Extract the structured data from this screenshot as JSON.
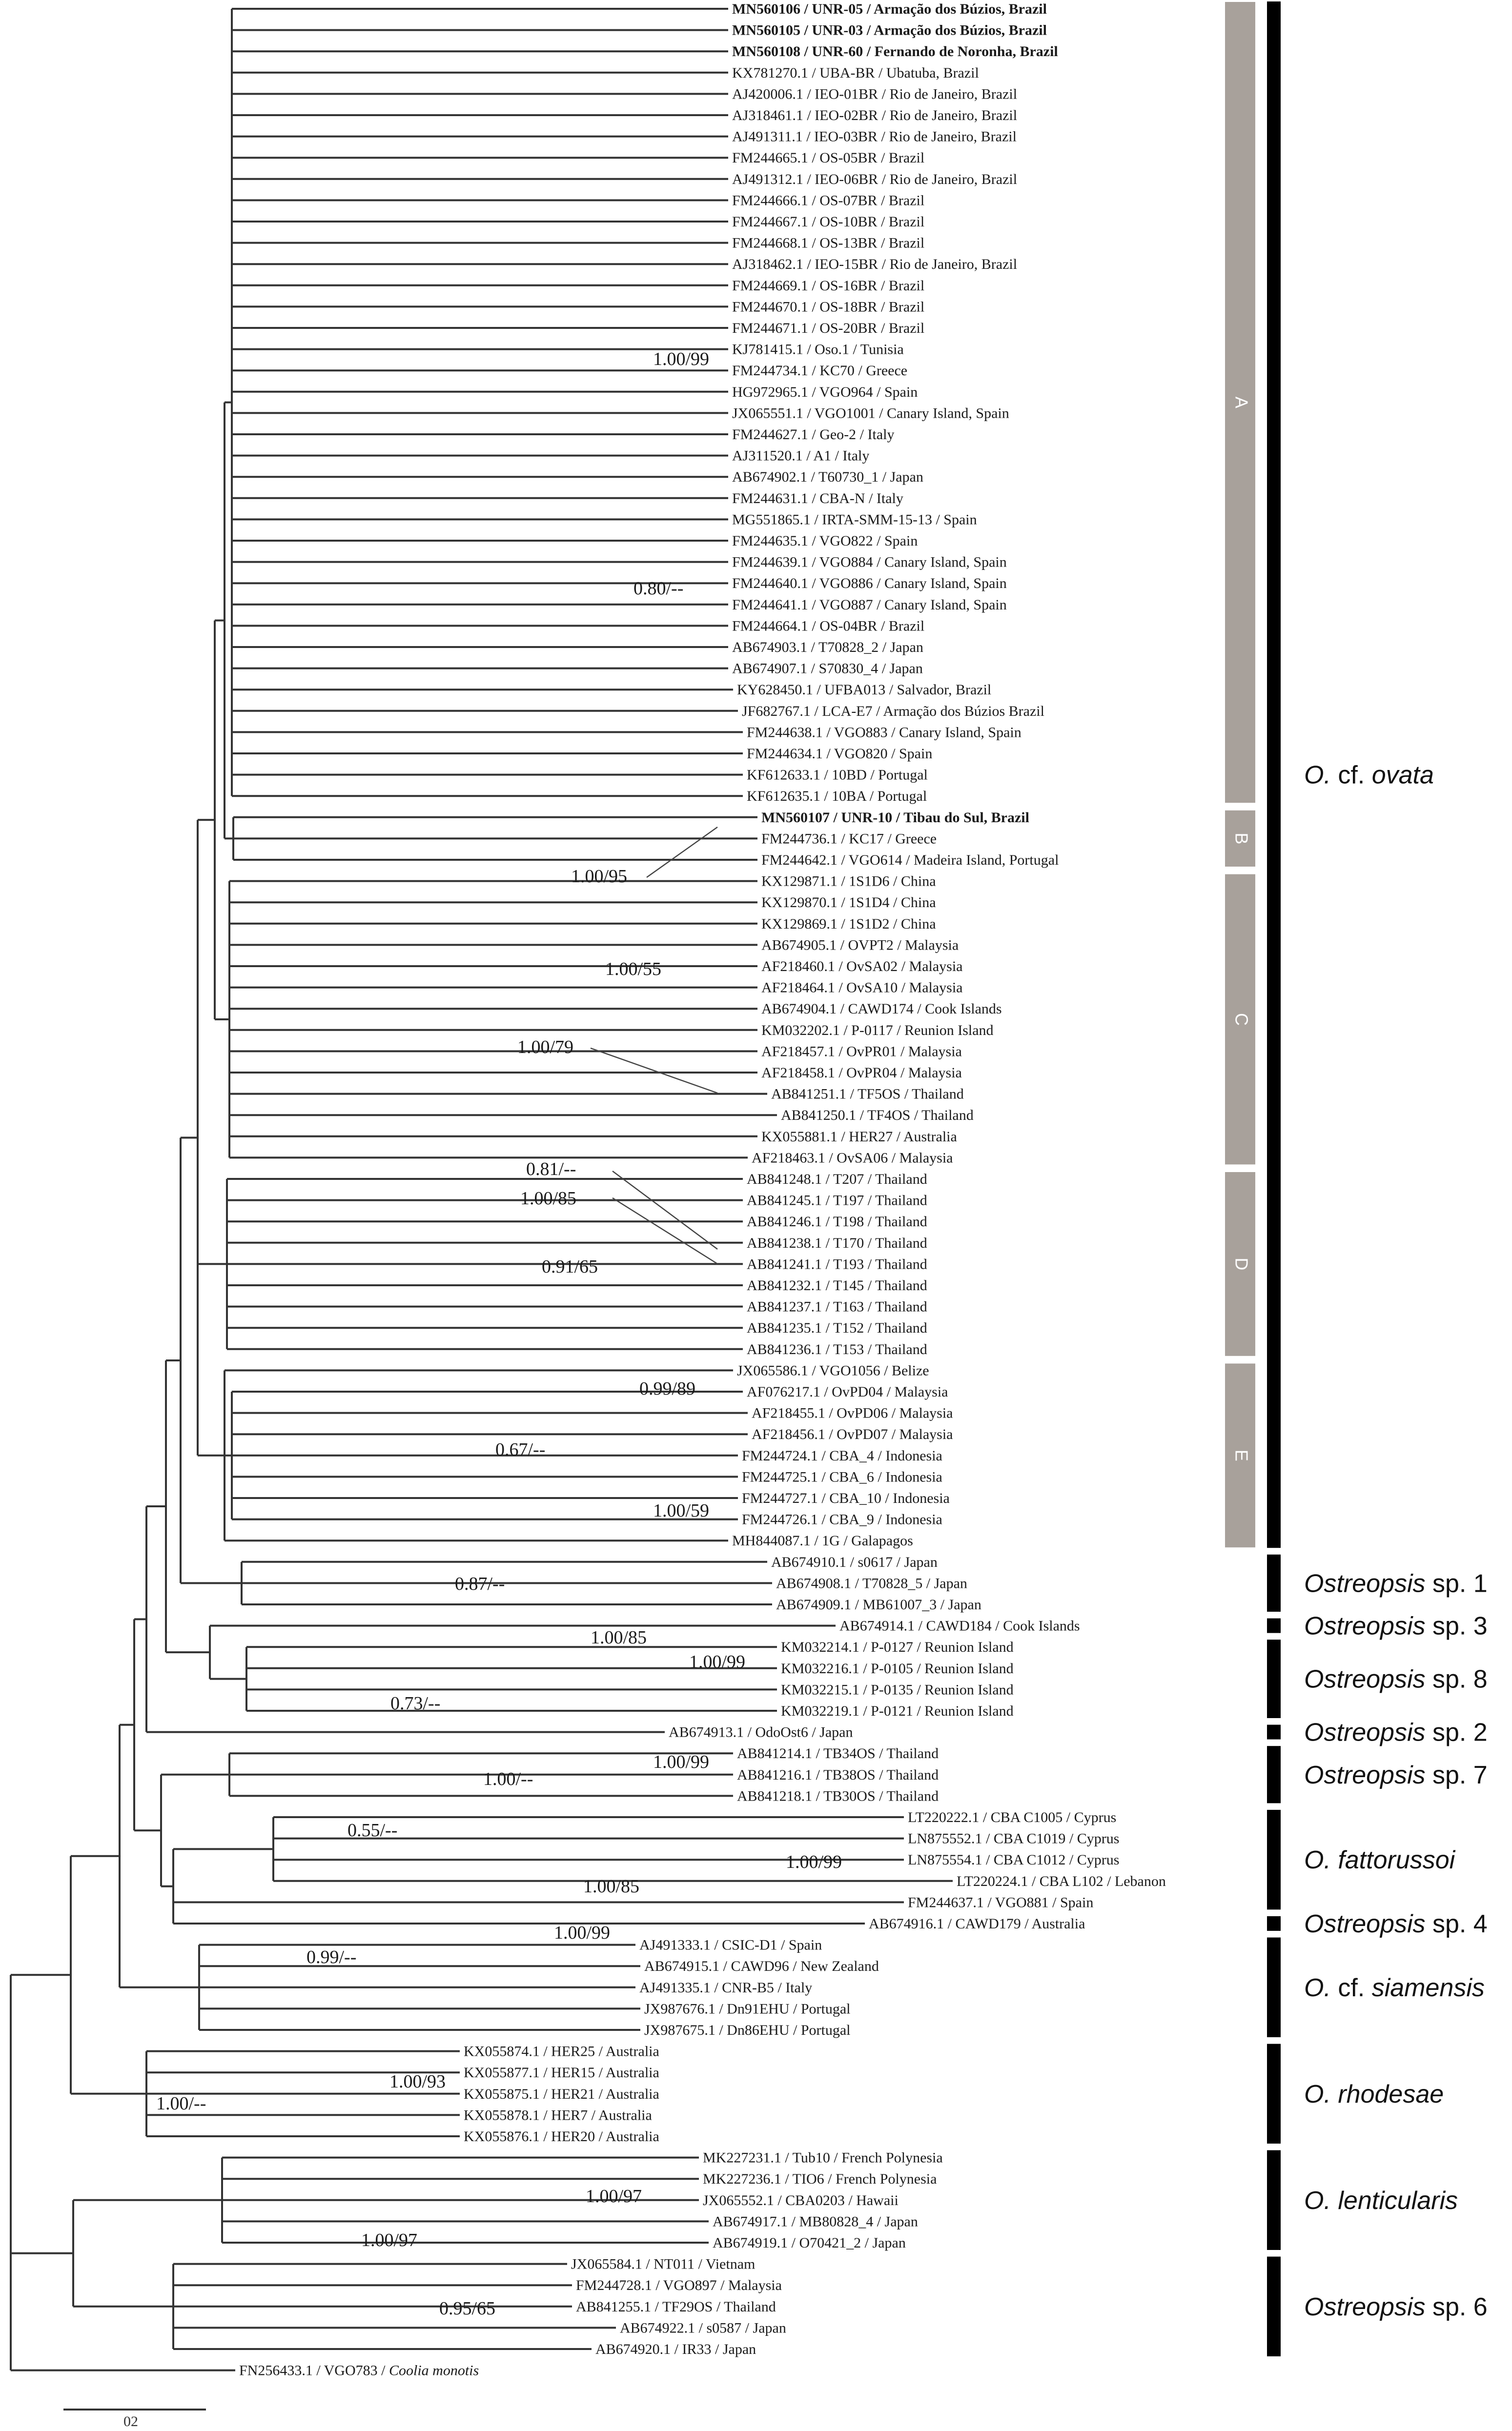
{
  "figure": {
    "type": "phylogenetic-tree",
    "scale_bar": {
      "label": "02"
    }
  },
  "leaves": [
    {
      "name": "MN560106 / UNR-05 / Armação dos Búzios, Brazil",
      "bold": true
    },
    {
      "name": "MN560105 / UNR-03 / Armação dos Búzios, Brazil",
      "bold": true
    },
    {
      "name": "MN560108 / UNR-60 / Fernando de Noronha, Brazil",
      "bold": true
    },
    {
      "name": "KX781270.1 / UBA-BR / Ubatuba, Brazil"
    },
    {
      "name": "AJ420006.1 / IEO-01BR / Rio de Janeiro, Brazil"
    },
    {
      "name": "AJ318461.1 / IEO-02BR / Rio de Janeiro, Brazil"
    },
    {
      "name": "AJ491311.1 / IEO-03BR / Rio de Janeiro, Brazil"
    },
    {
      "name": "FM244665.1 / OS-05BR / Brazil"
    },
    {
      "name": "AJ491312.1 / IEO-06BR / Rio de Janeiro, Brazil"
    },
    {
      "name": "FM244666.1 / OS-07BR / Brazil"
    },
    {
      "name": "FM244667.1 / OS-10BR / Brazil"
    },
    {
      "name": "FM244668.1 / OS-13BR / Brazil"
    },
    {
      "name": "AJ318462.1 / IEO-15BR / Rio de Janeiro, Brazil"
    },
    {
      "name": "FM244669.1 / OS-16BR / Brazil"
    },
    {
      "name": "FM244670.1 / OS-18BR / Brazil"
    },
    {
      "name": "FM244671.1 / OS-20BR / Brazil"
    },
    {
      "name": "KJ781415.1 / Oso.1 / Tunisia"
    },
    {
      "name": "FM244734.1 / KC70 / Greece"
    },
    {
      "name": "HG972965.1 / VGO964 / Spain"
    },
    {
      "name": "JX065551.1 / VGO1001 / Canary Island, Spain"
    },
    {
      "name": "FM244627.1 / Geo-2 / Italy"
    },
    {
      "name": "AJ311520.1 / A1 / Italy"
    },
    {
      "name": "AB674902.1 / T60730_1 / Japan"
    },
    {
      "name": "FM244631.1 / CBA-N / Italy"
    },
    {
      "name": "MG551865.1 / IRTA-SMM-15-13 / Spain"
    },
    {
      "name": "FM244635.1 / VGO822 / Spain"
    },
    {
      "name": "FM244639.1 / VGO884 / Canary Island, Spain"
    },
    {
      "name": "FM244640.1 / VGO886 / Canary Island, Spain"
    },
    {
      "name": "FM244641.1 / VGO887 / Canary Island, Spain"
    },
    {
      "name": "FM244664.1 / OS-04BR / Brazil"
    },
    {
      "name": "AB674903.1 / T70828_2 / Japan"
    },
    {
      "name": "AB674907.1 / S70830_4 / Japan"
    },
    {
      "name": "KY628450.1 / UFBA013 / Salvador, Brazil"
    },
    {
      "name": "JF682767.1 / LCA-E7 / Armação dos Búzios Brazil"
    },
    {
      "name": "FM244638.1 / VGO883 / Canary Island, Spain"
    },
    {
      "name": "FM244634.1 / VGO820 / Spain"
    },
    {
      "name": "KF612633.1 / 10BD / Portugal"
    },
    {
      "name": "KF612635.1 / 10BA / Portugal"
    },
    {
      "name": "MN560107 / UNR-10 / Tibau do Sul, Brazil",
      "bold": true
    },
    {
      "name": "FM244736.1 / KC17 / Greece"
    },
    {
      "name": "FM244642.1 / VGO614 / Madeira Island, Portugal"
    },
    {
      "name": "KX129871.1 / 1S1D6 / China"
    },
    {
      "name": "KX129870.1 / 1S1D4 / China"
    },
    {
      "name": "KX129869.1 / 1S1D2 / China"
    },
    {
      "name": "AB674905.1 / OVPT2 / Malaysia"
    },
    {
      "name": "AF218460.1 / OvSA02 / Malaysia"
    },
    {
      "name": "AF218464.1 / OvSA10 / Malaysia"
    },
    {
      "name": "AB674904.1 / CAWD174 / Cook Islands"
    },
    {
      "name": "KM032202.1 / P-0117 / Reunion Island"
    },
    {
      "name": "AF218457.1 / OvPR01 / Malaysia"
    },
    {
      "name": "AF218458.1 / OvPR04 / Malaysia"
    },
    {
      "name": "AB841251.1 / TF5OS / Thailand"
    },
    {
      "name": "AB841250.1 / TF4OS / Thailand"
    },
    {
      "name": "KX055881.1 / HER27 / Australia"
    },
    {
      "name": "AF218463.1 / OvSA06 / Malaysia"
    },
    {
      "name": "AB841248.1 / T207 / Thailand"
    },
    {
      "name": "AB841245.1 / T197 / Thailand"
    },
    {
      "name": "AB841246.1 / T198 / Thailand"
    },
    {
      "name": "AB841238.1 / T170 / Thailand"
    },
    {
      "name": "AB841241.1 / T193 / Thailand"
    },
    {
      "name": "AB841232.1 / T145 / Thailand"
    },
    {
      "name": "AB841237.1 / T163 / Thailand"
    },
    {
      "name": "AB841235.1 / T152 / Thailand"
    },
    {
      "name": "AB841236.1 / T153 / Thailand"
    },
    {
      "name": "JX065586.1 / VGO1056 / Belize"
    },
    {
      "name": "AF076217.1 / OvPD04 / Malaysia"
    },
    {
      "name": "AF218455.1 / OvPD06 / Malaysia"
    },
    {
      "name": "AF218456.1 / OvPD07 / Malaysia"
    },
    {
      "name": "FM244724.1 / CBA_4 / Indonesia"
    },
    {
      "name": "FM244725.1 / CBA_6 / Indonesia"
    },
    {
      "name": "FM244727.1 / CBA_10 / Indonesia"
    },
    {
      "name": "FM244726.1 / CBA_9 / Indonesia"
    },
    {
      "name": "MH844087.1 / 1G / Galapagos"
    },
    {
      "name": "AB674910.1 / s0617 / Japan"
    },
    {
      "name": "AB674908.1 / T70828_5 / Japan"
    },
    {
      "name": "AB674909.1 / MB61007_3 / Japan"
    },
    {
      "name": "AB674914.1 / CAWD184 / Cook Islands"
    },
    {
      "name": "KM032214.1 / P-0127 / Reunion Island"
    },
    {
      "name": "KM032216.1 / P-0105 / Reunion Island"
    },
    {
      "name": "KM032215.1 / P-0135 / Reunion Island"
    },
    {
      "name": "KM032219.1 / P-0121 / Reunion Island"
    },
    {
      "name": "AB674913.1 / OdoOst6 / Japan"
    },
    {
      "name": "AB841214.1 / TB34OS / Thailand"
    },
    {
      "name": "AB841216.1 / TB38OS / Thailand"
    },
    {
      "name": "AB841218.1 / TB30OS / Thailand"
    },
    {
      "name": "LT220222.1 / CBA C1005 / Cyprus"
    },
    {
      "name": "LN875552.1 / CBA C1019 / Cyprus"
    },
    {
      "name": "LN875554.1 / CBA C1012 / Cyprus"
    },
    {
      "name": "LT220224.1 / CBA L102 / Lebanon"
    },
    {
      "name": "FM244637.1 / VGO881 / Spain"
    },
    {
      "name": "AB674916.1 / CAWD179 / Australia"
    },
    {
      "name": "AJ491333.1 / CSIC-D1 / Spain"
    },
    {
      "name": "AB674915.1 / CAWD96 / New Zealand"
    },
    {
      "name": "AJ491335.1 / CNR-B5 / Italy"
    },
    {
      "name": "JX987676.1 / Dn91EHU / Portugal"
    },
    {
      "name": "JX987675.1 / Dn86EHU / Portugal"
    },
    {
      "name": "KX055874.1 / HER25 / Australia"
    },
    {
      "name": "KX055877.1 / HER15 / Australia"
    },
    {
      "name": "KX055875.1 / HER21 / Australia"
    },
    {
      "name": "KX055878.1 / HER7 / Australia"
    },
    {
      "name": "KX055876.1 / HER20 / Australia"
    },
    {
      "name": "MK227231.1 / Tub10 / French Polynesia"
    },
    {
      "name": "MK227236.1 / TIO6 / French Polynesia"
    },
    {
      "name": "JX065552.1 / CBA0203 / Hawaii"
    },
    {
      "name": "AB674917.1 / MB80828_4 / Japan"
    },
    {
      "name": "AB674919.1 / O70421_2 / Japan"
    },
    {
      "name": "JX065584.1 / NT011 / Vietnam"
    },
    {
      "name": "FM244728.1 / VGO897 / Malaysia"
    },
    {
      "name": "AB841255.1 / TF29OS / Thailand"
    },
    {
      "name": "AB674922.1 / s0587 / Japan"
    },
    {
      "name": "AB674920.1 / IR33 / Japan"
    },
    {
      "name": "FN256433.1 / VGO783 / ",
      "italic_suffix": "Coolia monotis"
    }
  ],
  "support_values": [
    "1.00/99",
    "0.80/--",
    "1.00/95",
    "1.00/55",
    "1.00/79",
    "0.81/--",
    "1.00/85",
    "0.91/65",
    "0.99/89",
    "0.67/--",
    "1.00/59",
    "0.87/--",
    "1.00/85",
    "1.00/99",
    "0.73/--",
    "1.00/99",
    "1.00/--",
    "0.55/--",
    "1.00/99",
    "1.00/85",
    "0.99/--",
    "1.00/99",
    "1.00/93",
    "1.00/--",
    "1.00/97",
    "1.00/97",
    "0.95/65"
  ],
  "clades": [
    {
      "label": "A"
    },
    {
      "label": "B"
    },
    {
      "label": "C"
    },
    {
      "label": "D"
    },
    {
      "label": "E"
    }
  ],
  "species_groups": [
    {
      "prefix": "O.",
      "epithet": "cf. ovata",
      "prefix_italic": true,
      "epithet_italic_part": "ovata"
    },
    {
      "prefix": "Ostreopsis",
      "epithet": "sp. 1",
      "prefix_italic": true
    },
    {
      "prefix": "Ostreopsis",
      "epithet": "sp. 3",
      "prefix_italic": true
    },
    {
      "prefix": "Ostreopsis",
      "epithet": "sp. 8",
      "prefix_italic": true
    },
    {
      "prefix": "Ostreopsis",
      "epithet": "sp. 2",
      "prefix_italic": true
    },
    {
      "prefix": "Ostreopsis",
      "epithet": "sp. 7",
      "prefix_italic": true
    },
    {
      "prefix": "O.",
      "epithet": "fattorussoi",
      "prefix_italic": true,
      "epithet_italic": true
    },
    {
      "prefix": "Ostreopsis",
      "epithet": "sp. 4",
      "prefix_italic": true
    },
    {
      "prefix": "O.",
      "epithet": "cf. siamensis",
      "prefix_italic": true,
      "epithet_italic_part": "siamensis"
    },
    {
      "prefix": "O.",
      "epithet": "rhodesae",
      "prefix_italic": true,
      "epithet_italic": true
    },
    {
      "prefix": "O.",
      "epithet": "lenticularis",
      "prefix_italic": true,
      "epithet_italic": true
    },
    {
      "prefix": "Ostreopsis",
      "epithet": "sp. 6",
      "prefix_italic": true
    }
  ]
}
